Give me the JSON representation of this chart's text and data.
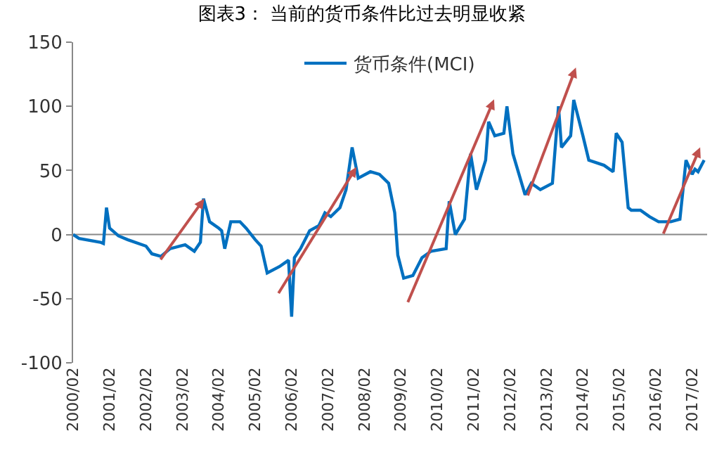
{
  "chart_data": {
    "type": "line",
    "title": "图表3： 当前的货币条件比过去明显收紧",
    "x": [
      "2000-02",
      "2000-04",
      "2000-11",
      "2000-12",
      "2001-01",
      "2001-02",
      "2001-05",
      "2001-08",
      "2002-02",
      "2002-04",
      "2002-07",
      "2002-10",
      "2003-03",
      "2003-06",
      "2003-08",
      "2003-09",
      "2003-11",
      "2004-02",
      "2004-03",
      "2004-04",
      "2004-06",
      "2004-09",
      "2004-11",
      "2005-02",
      "2005-04",
      "2005-06",
      "2005-10",
      "2006-01",
      "2006-02",
      "2006-03",
      "2006-05",
      "2006-08",
      "2006-11",
      "2007-01",
      "2007-03",
      "2007-06",
      "2007-08",
      "2007-10",
      "2007-12",
      "2008-04",
      "2008-07",
      "2008-10",
      "2008-12",
      "2009-01",
      "2009-03",
      "2009-06",
      "2009-09",
      "2009-12",
      "2010-05",
      "2010-06",
      "2010-08",
      "2010-11",
      "2011-01",
      "2011-03",
      "2011-06",
      "2011-07",
      "2011-09",
      "2011-12",
      "2012-01",
      "2012-03",
      "2012-07",
      "2012-09",
      "2012-12",
      "2013-04",
      "2013-06",
      "2013-07",
      "2013-10",
      "2013-11",
      "2014-02",
      "2014-04",
      "2014-09",
      "2014-12",
      "2015-01",
      "2015-03",
      "2015-05",
      "2015-06",
      "2015-09",
      "2015-12",
      "2016-03",
      "2016-07",
      "2016-10",
      "2016-11",
      "2016-12",
      "2017-02",
      "2017-03",
      "2017-04",
      "2017-06"
    ],
    "series": [
      {
        "name": "货币条件(MCI)",
        "color": "#0070c0",
        "values": [
          0,
          -3,
          -6,
          -7,
          21,
          5,
          -1,
          -4,
          -9,
          -15,
          -17,
          -11,
          -8,
          -13,
          -6,
          28,
          10,
          5,
          3,
          -11,
          10,
          10,
          5,
          -4,
          -9,
          -30,
          -25,
          -20,
          -64,
          -18,
          -11,
          3,
          7,
          17,
          14,
          21,
          35,
          68,
          44,
          49,
          47,
          40,
          17,
          -16,
          -34,
          -32,
          -18,
          -13,
          -11,
          26,
          0,
          12,
          63,
          35,
          58,
          88,
          77,
          79,
          100,
          63,
          31,
          40,
          35,
          40,
          100,
          68,
          77,
          105,
          77,
          58,
          54,
          49,
          79,
          72,
          21,
          19,
          19,
          14,
          10,
          10,
          12,
          35,
          58,
          47,
          51,
          49,
          58
        ]
      }
    ],
    "xlim": [
      "2000-02",
      "2017-07"
    ],
    "xticks": [
      {
        "value": "2000-02",
        "label": "2000/02"
      },
      {
        "value": "2001-02",
        "label": "2001/02"
      },
      {
        "value": "2002-02",
        "label": "2002/02"
      },
      {
        "value": "2003-02",
        "label": "2003/02"
      },
      {
        "value": "2004-02",
        "label": "2004/02"
      },
      {
        "value": "2005-02",
        "label": "2005/02"
      },
      {
        "value": "2006-02",
        "label": "2006/02"
      },
      {
        "value": "2007-02",
        "label": "2007/02"
      },
      {
        "value": "2008-02",
        "label": "2008/02"
      },
      {
        "value": "2009-02",
        "label": "2009/02"
      },
      {
        "value": "2010-02",
        "label": "2010/02"
      },
      {
        "value": "2011-02",
        "label": "2011/02"
      },
      {
        "value": "2012-02",
        "label": "2012/02"
      },
      {
        "value": "2013-02",
        "label": "2013/02"
      },
      {
        "value": "2014-02",
        "label": "2014/02"
      },
      {
        "value": "2015-02",
        "label": "2015/02"
      },
      {
        "value": "2016-02",
        "label": "2016/02"
      },
      {
        "value": "2017-02",
        "label": "2017/02"
      }
    ],
    "ylim": [
      -100,
      150
    ],
    "yticks": [
      -100,
      -50,
      0,
      50,
      100,
      150
    ],
    "ref_lines": [
      {
        "axis": "y",
        "value": 0,
        "color": "#888888"
      }
    ],
    "legend": "top",
    "marker": "none",
    "line_style": "solid"
  }
}
